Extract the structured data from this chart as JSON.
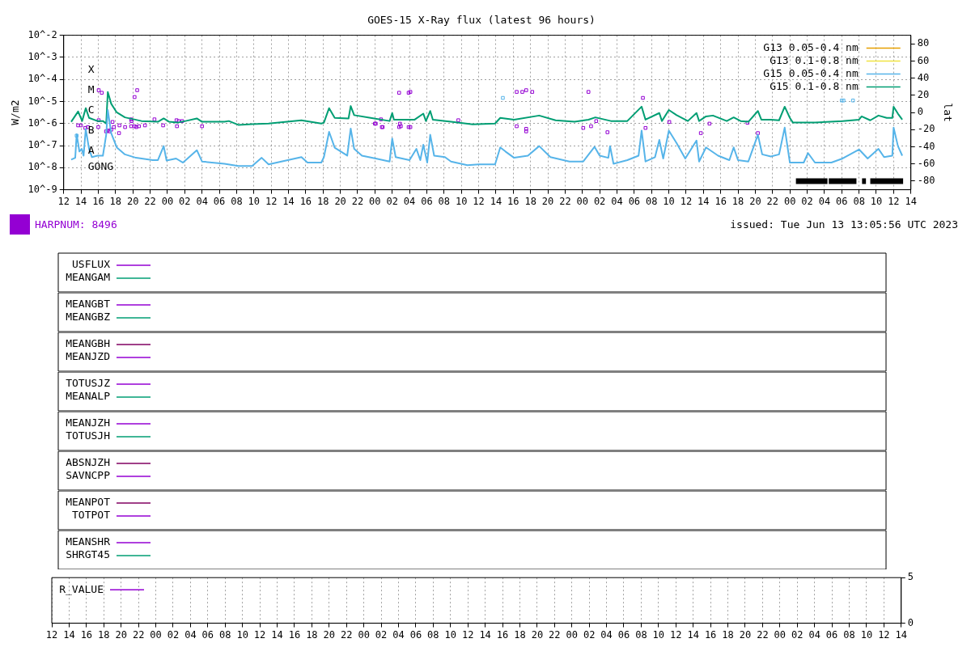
{
  "chart_data": [
    {
      "type": "line",
      "title": "GOES-15 X-Ray flux (latest 96 hours)",
      "ylabel": "W/m2",
      "y2label": "lat",
      "log": true,
      "grid": true,
      "legend": "top right",
      "xlim": [
        "2023-06-09T12:00",
        "2023-06-13T14:00"
      ],
      "xticks": [
        {
          "value": "2023-06-09T12:00",
          "label": "12"
        },
        {
          "value": "2023-06-09T14:00",
          "label": "14"
        },
        {
          "value": "2023-06-09T16:00",
          "label": "16"
        },
        {
          "value": "2023-06-09T18:00",
          "label": "18"
        },
        {
          "value": "2023-06-09T20:00",
          "label": "20"
        },
        {
          "value": "2023-06-09T22:00",
          "label": "22"
        },
        {
          "value": "2023-06-10T00:00",
          "label": "00"
        },
        {
          "value": "2023-06-10T02:00",
          "label": "02"
        },
        {
          "value": "2023-06-10T04:00",
          "label": "04"
        },
        {
          "value": "2023-06-10T06:00",
          "label": "06"
        },
        {
          "value": "2023-06-10T08:00",
          "label": "08"
        },
        {
          "value": "2023-06-10T10:00",
          "label": "10"
        },
        {
          "value": "2023-06-10T12:00",
          "label": "12"
        },
        {
          "value": "2023-06-10T14:00",
          "label": "14"
        },
        {
          "value": "2023-06-10T16:00",
          "label": "16"
        },
        {
          "value": "2023-06-10T18:00",
          "label": "18"
        },
        {
          "value": "2023-06-10T20:00",
          "label": "20"
        },
        {
          "value": "2023-06-10T22:00",
          "label": "22"
        },
        {
          "value": "2023-06-11T00:00",
          "label": "00"
        },
        {
          "value": "2023-06-11T02:00",
          "label": "02"
        },
        {
          "value": "2023-06-11T04:00",
          "label": "04"
        },
        {
          "value": "2023-06-11T06:00",
          "label": "06"
        },
        {
          "value": "2023-06-11T08:00",
          "label": "08"
        },
        {
          "value": "2023-06-11T10:00",
          "label": "10"
        },
        {
          "value": "2023-06-11T12:00",
          "label": "12"
        },
        {
          "value": "2023-06-11T14:00",
          "label": "14"
        },
        {
          "value": "2023-06-11T16:00",
          "label": "16"
        },
        {
          "value": "2023-06-11T18:00",
          "label": "18"
        },
        {
          "value": "2023-06-11T20:00",
          "label": "20"
        },
        {
          "value": "2023-06-11T22:00",
          "label": "22"
        },
        {
          "value": "2023-06-12T00:00",
          "label": "00"
        },
        {
          "value": "2023-06-12T02:00",
          "label": "02"
        },
        {
          "value": "2023-06-12T04:00",
          "label": "04"
        },
        {
          "value": "2023-06-12T06:00",
          "label": "06"
        },
        {
          "value": "2023-06-12T08:00",
          "label": "08"
        },
        {
          "value": "2023-06-12T10:00",
          "label": "10"
        },
        {
          "value": "2023-06-12T12:00",
          "label": "12"
        },
        {
          "value": "2023-06-12T14:00",
          "label": "14"
        },
        {
          "value": "2023-06-12T16:00",
          "label": "16"
        },
        {
          "value": "2023-06-12T18:00",
          "label": "18"
        },
        {
          "value": "2023-06-12T20:00",
          "label": "20"
        },
        {
          "value": "2023-06-12T22:00",
          "label": "22"
        },
        {
          "value": "2023-06-13T00:00",
          "label": "00"
        },
        {
          "value": "2023-06-13T02:00",
          "label": "02"
        },
        {
          "value": "2023-06-13T04:00",
          "label": "04"
        },
        {
          "value": "2023-06-13T06:00",
          "label": "06"
        },
        {
          "value": "2023-06-13T08:00",
          "label": "08"
        },
        {
          "value": "2023-06-13T10:00",
          "label": "10"
        },
        {
          "value": "2023-06-13T12:00",
          "label": "12"
        },
        {
          "value": "2023-06-13T14:00",
          "label": "14"
        }
      ],
      "ylim": [
        1e-09,
        0.01
      ],
      "yticks": [
        {
          "value": 1e-09,
          "label": "10^-9"
        },
        {
          "value": 1e-08,
          "label": "10^-8"
        },
        {
          "value": 1e-07,
          "label": "10^-7"
        },
        {
          "value": 1e-06,
          "label": "10^-6"
        },
        {
          "value": 1e-05,
          "label": "10^-5"
        },
        {
          "value": 0.0001,
          "label": "10^-4"
        },
        {
          "value": 0.001,
          "label": "10^-3"
        },
        {
          "value": 0.01,
          "label": "10^-2"
        }
      ],
      "y2lim": [
        -90,
        90
      ],
      "y2ticks": [
        -80,
        -60,
        -40,
        -20,
        0,
        20,
        40,
        60,
        80
      ],
      "series": [
        {
          "name": "G13 0.05-0.4 nm",
          "color": "#e69f00"
        },
        {
          "name": "G13 0.1-0.8 nm",
          "color": "#f0e442"
        },
        {
          "name": "G15 0.05-0.4 nm",
          "color": "#56b4e9",
          "x": [
            "2023-06-09T12:52",
            "2023-06-09T13:20",
            "2023-06-09T13:30",
            "2023-06-09T13:49",
            "2023-06-09T14:05",
            "2023-06-09T14:18",
            "2023-06-09T14:33",
            "2023-06-09T14:56",
            "2023-06-09T15:16",
            "2023-06-09T15:54",
            "2023-06-09T16:32",
            "2023-06-09T16:55",
            "2023-06-09T17:06",
            "2023-06-09T17:30",
            "2023-06-09T18:08",
            "2023-06-09T19:05",
            "2023-06-09T20:22",
            "2023-06-09T22:18",
            "2023-06-09T22:54",
            "2023-06-09T23:34",
            "2023-06-09T23:54",
            "2023-06-10T01:00",
            "2023-06-10T01:48",
            "2023-06-10T03:24",
            "2023-06-10T04:00",
            "2023-06-10T06:36",
            "2023-06-10T08:12",
            "2023-06-10T09:48",
            "2023-06-10T10:54",
            "2023-06-10T11:42",
            "2023-06-10T15:30",
            "2023-06-10T16:12",
            "2023-06-10T17:48",
            "2023-06-10T18:06",
            "2023-06-10T18:42",
            "2023-06-10T19:21",
            "2023-06-10T20:48",
            "2023-06-10T21:12",
            "2023-06-10T21:36",
            "2023-06-10T22:30",
            "2023-06-11T00:06",
            "2023-06-11T01:42",
            "2023-06-11T02:00",
            "2023-06-11T02:24",
            "2023-06-11T04:00",
            "2023-06-11T04:48",
            "2023-06-11T05:15",
            "2023-06-11T05:36",
            "2023-06-11T06:03",
            "2023-06-11T06:24",
            "2023-06-11T06:51",
            "2023-06-11T08:06",
            "2023-06-11T08:48",
            "2023-06-11T10:42",
            "2023-06-11T12:00",
            "2023-06-11T13:54",
            "2023-06-11T14:30",
            "2023-06-11T15:06",
            "2023-06-11T16:06",
            "2023-06-11T17:42",
            "2023-06-11T19:00",
            "2023-06-11T20:18",
            "2023-06-11T22:30",
            "2023-06-12T00:06",
            "2023-06-12T01:24",
            "2023-06-12T02:00",
            "2023-06-12T03:00",
            "2023-06-12T03:12",
            "2023-06-12T03:36",
            "2023-06-12T05:12",
            "2023-06-12T06:30",
            "2023-06-12T06:51",
            "2023-06-12T07:18",
            "2023-06-12T08:24",
            "2023-06-12T08:54",
            "2023-06-12T09:21",
            "2023-06-12T10:00",
            "2023-06-12T10:54",
            "2023-06-12T11:54",
            "2023-06-12T13:12",
            "2023-06-12T13:30",
            "2023-06-12T14:18",
            "2023-06-12T15:42",
            "2023-06-12T17:00",
            "2023-06-12T17:30",
            "2023-06-12T18:00",
            "2023-06-12T19:12",
            "2023-06-12T20:18",
            "2023-06-12T20:48",
            "2023-06-12T21:48",
            "2023-06-12T22:45",
            "2023-06-12T23:24",
            "2023-06-13T00:00",
            "2023-06-13T01:36",
            "2023-06-13T02:06",
            "2023-06-13T02:54",
            "2023-06-13T04:48",
            "2023-06-13T06:06",
            "2023-06-13T08:00",
            "2023-06-13T09:00",
            "2023-06-13T10:15",
            "2023-06-13T10:54",
            "2023-06-13T11:51",
            "2023-06-13T12:00",
            "2023-06-13T12:30",
            "2023-06-13T13:00"
          ],
          "values": [
            2.3e-08,
            2.8e-08,
            3.3e-07,
            5.4e-08,
            7.1e-08,
            3.5e-08,
            5.6e-07,
            7.1e-08,
            3e-08,
            3.5e-08,
            3.5e-08,
            3.1e-07,
            4.1e-06,
            3.6e-07,
            8.3e-08,
            4e-08,
            2.8e-08,
            2.2e-08,
            2.2e-08,
            9.5e-08,
            2.1e-08,
            2.6e-08,
            1.7e-08,
            6.2e-08,
            1.9e-08,
            1.5e-08,
            1.2e-08,
            1.2e-08,
            2.8e-08,
            1.4e-08,
            3e-08,
            1.7e-08,
            1.7e-08,
            3e-08,
            4.2e-07,
            8e-08,
            3.5e-08,
            5.9e-07,
            7.1e-08,
            3.5e-08,
            2.6e-08,
            1.9e-08,
            2.1e-07,
            3e-08,
            2.2e-08,
            7.1e-08,
            2.2e-08,
            1.1e-07,
            1.7e-08,
            3.1e-07,
            3.5e-08,
            3e-08,
            1.9e-08,
            1.3e-08,
            1.4e-08,
            1.4e-08,
            8.3e-08,
            5.4e-08,
            2.8e-08,
            3.5e-08,
            9.5e-08,
            3e-08,
            1.9e-08,
            1.9e-08,
            8.8e-08,
            3.5e-08,
            2.8e-08,
            9.5e-08,
            1.5e-08,
            2.2e-08,
            3.5e-08,
            4.8e-07,
            1.9e-08,
            3e-08,
            1.8e-07,
            2.6e-08,
            4.8e-07,
            1.3e-07,
            2.6e-08,
            1.7e-07,
            1.9e-08,
            8.3e-08,
            3.5e-08,
            2.2e-08,
            8.3e-08,
            2.2e-08,
            1.9e-08,
            3.1e-07,
            4e-08,
            3.2e-08,
            4e-08,
            6.5e-07,
            1.7e-08,
            1.7e-08,
            4.6e-08,
            1.7e-08,
            1.7e-08,
            2.6e-08,
            6.7e-08,
            2.6e-08,
            7.1e-08,
            3e-08,
            3.5e-08,
            6.5e-07,
            9.5e-08,
            3.5e-08
          ]
        },
        {
          "name": "G15 0.1-0.8 nm",
          "color": "#009e73",
          "x": [
            "2023-06-09T12:52",
            "2023-06-09T13:40",
            "2023-06-09T14:08",
            "2023-06-09T14:33",
            "2023-06-09T14:56",
            "2023-06-09T15:54",
            "2023-06-09T16:32",
            "2023-06-09T16:55",
            "2023-06-09T17:06",
            "2023-06-09T17:30",
            "2023-06-09T18:08",
            "2023-06-09T19:05",
            "2023-06-09T21:00",
            "2023-06-09T22:54",
            "2023-06-09T23:34",
            "2023-06-10T00:12",
            "2023-06-10T01:09",
            "2023-06-10T02:06",
            "2023-06-10T03:24",
            "2023-06-10T04:00",
            "2023-06-10T06:36",
            "2023-06-10T07:06",
            "2023-06-10T08:12",
            "2023-06-10T09:48",
            "2023-06-10T11:42",
            "2023-06-10T15:30",
            "2023-06-10T17:48",
            "2023-06-10T18:06",
            "2023-06-10T18:42",
            "2023-06-10T19:21",
            "2023-06-10T20:57",
            "2023-06-10T21:12",
            "2023-06-10T21:36",
            "2023-06-10T23:30",
            "2023-06-11T01:42",
            "2023-06-11T02:00",
            "2023-06-11T02:12",
            "2023-06-11T04:36",
            "2023-06-11T05:36",
            "2023-06-11T05:54",
            "2023-06-11T06:24",
            "2023-06-11T06:42",
            "2023-06-11T08:48",
            "2023-06-11T11:18",
            "2023-06-11T13:54",
            "2023-06-11T14:30",
            "2023-06-11T16:06",
            "2023-06-11T19:00",
            "2023-06-11T20:54",
            "2023-06-11T23:06",
            "2023-06-12T00:42",
            "2023-06-12T01:30",
            "2023-06-12T03:18",
            "2023-06-12T05:12",
            "2023-06-12T06:51",
            "2023-06-12T07:18",
            "2023-06-12T08:54",
            "2023-06-12T09:12",
            "2023-06-12T10:00",
            "2023-06-12T10:54",
            "2023-06-12T12:12",
            "2023-06-12T13:12",
            "2023-06-12T13:30",
            "2023-06-12T14:18",
            "2023-06-12T15:06",
            "2023-06-12T16:42",
            "2023-06-12T17:30",
            "2023-06-12T18:18",
            "2023-06-12T19:12",
            "2023-06-12T20:18",
            "2023-06-12T20:42",
            "2023-06-12T21:48",
            "2023-06-12T22:45",
            "2023-06-12T23:24",
            "2023-06-13T00:00",
            "2023-06-13T00:21",
            "2023-06-13T02:54",
            "2023-06-13T06:06",
            "2023-06-13T08:00",
            "2023-06-13T08:18",
            "2023-06-13T09:18",
            "2023-06-13T10:15",
            "2023-06-13T11:12",
            "2023-06-13T11:51",
            "2023-06-13T12:00",
            "2023-06-13T12:30",
            "2023-06-13T13:00"
          ],
          "values": [
            1.2e-06,
            3.5e-06,
            1.3e-06,
            5e-06,
            1.8e-06,
            1.3e-06,
            1.3e-06,
            1e-06,
            2.7e-05,
            7.8e-06,
            3.2e-06,
            1.9e-06,
            1.3e-06,
            1.2e-06,
            1.7e-06,
            1.2e-06,
            1.1e-06,
            1.3e-06,
            1.7e-06,
            1.2e-06,
            1.2e-06,
            1.3e-06,
            8.7e-07,
            9.4e-07,
            1e-06,
            1.4e-06,
            1e-06,
            1.1e-06,
            5e-06,
            1.8e-06,
            1.7e-06,
            6.2e-06,
            2.4e-06,
            1.8e-06,
            1.3e-06,
            3e-06,
            1.5e-06,
            1.5e-06,
            2.8e-06,
            1.3e-06,
            3.7e-06,
            1.5e-06,
            1.2e-06,
            9.2e-07,
            1e-06,
            1.8e-06,
            1.5e-06,
            2.3e-06,
            1.4e-06,
            1.2e-06,
            1.5e-06,
            1.9e-06,
            1.3e-06,
            1.3e-06,
            5.8e-06,
            1.5e-06,
            3e-06,
            1.3e-06,
            4.1e-06,
            2.4e-06,
            1.3e-06,
            3e-06,
            1.3e-06,
            2.1e-06,
            2.3e-06,
            1.3e-06,
            1.9e-06,
            1.3e-06,
            1.2e-06,
            3.7e-06,
            1.5e-06,
            1.5e-06,
            1.4e-06,
            5.8e-06,
            1.8e-06,
            1.1e-06,
            1.1e-06,
            1.3e-06,
            1.5e-06,
            2.1e-06,
            1.4e-06,
            2.3e-06,
            1.8e-06,
            1.8e-06,
            5.8e-06,
            2.8e-06,
            1.5e-06
          ]
        },
        {
          "name": "HARPNUM: 8496",
          "type": "scatter",
          "marker": "square",
          "axis": "y2",
          "color": "#9400d3",
          "x": [
            "2023-06-09T16:03",
            "2023-06-09T16:24",
            "2023-06-09T20:30",
            "2023-06-09T20:12",
            "2023-06-09T16:03",
            "2023-06-09T16:00",
            "2023-06-09T13:40",
            "2023-06-09T14:00",
            "2023-06-09T14:30",
            "2023-06-09T14:48",
            "2023-06-09T16:54",
            "2023-06-09T17:06",
            "2023-06-09T17:18",
            "2023-06-09T17:30",
            "2023-06-09T17:39",
            "2023-06-09T17:48",
            "2023-06-09T18:27",
            "2023-06-09T18:24",
            "2023-06-09T19:06",
            "2023-06-09T19:48",
            "2023-06-09T19:51",
            "2023-06-09T19:48",
            "2023-06-09T20:12",
            "2023-06-09T20:24",
            "2023-06-09T20:42",
            "2023-06-09T21:24",
            "2023-06-09T22:30",
            "2023-06-09T23:30",
            "2023-06-10T01:03",
            "2023-06-10T01:18",
            "2023-06-10T01:42",
            "2023-06-10T01:06",
            "2023-06-10T04:00",
            "2023-06-11T02:48",
            "2023-06-11T03:54",
            "2023-06-11T04:06",
            "2023-06-11T00:00",
            "2023-06-11T00:06",
            "2023-06-11T00:42",
            "2023-06-11T00:48",
            "2023-06-11T00:54",
            "2023-06-11T02:54",
            "2023-06-11T02:48",
            "2023-06-11T03:00",
            "2023-06-11T03:54",
            "2023-06-11T04:06",
            "2023-06-11T09:39",
            "2023-06-11T16:24",
            "2023-06-11T17:03",
            "2023-06-11T17:30",
            "2023-06-11T18:12",
            "2023-06-11T16:24",
            "2023-06-11T17:30",
            "2023-06-11T17:30",
            "2023-06-12T00:42",
            "2023-06-12T00:06",
            "2023-06-12T01:00",
            "2023-06-12T01:36",
            "2023-06-12T02:54",
            "2023-06-12T07:00",
            "2023-06-12T07:18",
            "2023-06-12T10:03",
            "2023-06-12T14:42",
            "2023-06-12T13:42",
            "2023-06-12T19:06",
            "2023-06-12T20:18"
          ],
          "values": [
            26,
            23,
            26,
            18,
            -9,
            -17,
            -15,
            -15,
            -18,
            -17,
            -22,
            -21,
            -22,
            -20,
            -11,
            -17,
            -15,
            -24,
            -17,
            -8,
            -10,
            -16,
            -16,
            -17,
            -16,
            -15,
            -8,
            -15,
            -9,
            -10,
            -10,
            -16,
            -16,
            23,
            23,
            24,
            -13,
            -13,
            -8,
            -17,
            -17,
            -13,
            -17,
            -16,
            -17,
            -17,
            -9,
            24,
            24,
            26,
            24,
            -16,
            -19,
            -22,
            24,
            -18,
            -16,
            -10,
            -23,
            17,
            -18,
            -11,
            -13,
            -24,
            -12,
            -24
          ]
        },
        {
          "type": "scatter",
          "marker": "square",
          "axis": "y2",
          "color": "#56b4e9",
          "x": [
            "2023-06-09T13:30",
            "2023-06-11T14:48",
            "2023-06-13T06:00",
            "2023-06-13T06:12",
            "2023-06-13T07:18"
          ],
          "values": [
            -27,
            17,
            14,
            14,
            14
          ]
        },
        {
          "type": "line",
          "axis": "y2",
          "color": "#000000",
          "x": [
            "2023-06-13T00:42",
            "2023-06-13T04:21",
            "2023-06-13T04:24",
            "2023-06-13T04:30",
            "2023-06-13T07:42",
            "2023-06-13T07:48",
            "2023-06-13T08:21",
            "2023-06-13T08:48",
            "2023-06-13T08:54",
            "2023-06-13T09:18",
            "2023-06-13T13:06"
          ],
          "values": [
            -80,
            -80,
            null,
            -80,
            -80,
            null,
            -80,
            -80,
            null,
            -80,
            -80
          ]
        }
      ],
      "annotations": [
        "X",
        "M",
        "C",
        "B",
        "A",
        "GONG",
        "issued: Tue Jun 13 13:05:56 UTC 2023"
      ]
    },
    {
      "type": "other",
      "legend": "top left",
      "series": [
        {
          "name": "USFLUX",
          "color": "#9400d3"
        },
        {
          "name": "MEANGAM",
          "color": "#009e73"
        }
      ]
    },
    {
      "type": "other",
      "legend": "top left",
      "series": [
        {
          "name": "MEANGBT",
          "color": "#9400d3"
        },
        {
          "name": "MEANGBZ",
          "color": "#009e73"
        }
      ]
    },
    {
      "type": "other",
      "legend": "top left",
      "series": [
        {
          "name": "MEANGBH",
          "color": "#800060"
        },
        {
          "name": "MEANJZD",
          "color": "#9400d3"
        }
      ]
    },
    {
      "type": "other",
      "legend": "top left",
      "series": [
        {
          "name": "TOTUSJZ",
          "color": "#9400d3"
        },
        {
          "name": "MEANALP",
          "color": "#009e73"
        }
      ]
    },
    {
      "type": "other",
      "legend": "top left",
      "series": [
        {
          "name": "MEANJZH",
          "color": "#9400d3"
        },
        {
          "name": "TOTUSJH",
          "color": "#009e73"
        }
      ]
    },
    {
      "type": "other",
      "legend": "top left",
      "series": [
        {
          "name": "ABSNJZH",
          "color": "#800060"
        },
        {
          "name": "SAVNCPP",
          "color": "#9400d3"
        }
      ]
    },
    {
      "type": "other",
      "legend": "top left",
      "series": [
        {
          "name": "MEANPOT",
          "color": "#800060"
        },
        {
          "name": "TOTPOT",
          "color": "#9400d3"
        }
      ]
    },
    {
      "type": "other",
      "legend": "top left",
      "series": [
        {
          "name": "MEANSHR",
          "color": "#9400d3"
        },
        {
          "name": "SHRGT45",
          "color": "#009e73"
        }
      ]
    },
    {
      "type": "line",
      "legend": "top left",
      "grid": "x",
      "categories": [
        "12",
        "14",
        "16",
        "18",
        "20",
        "22",
        "00",
        "02",
        "04",
        "06",
        "08",
        "10",
        "12",
        "14",
        "16",
        "18",
        "20",
        "22",
        "00",
        "02",
        "04",
        "06",
        "08",
        "10",
        "12",
        "14",
        "16",
        "18",
        "20",
        "22",
        "00",
        "02",
        "04",
        "06",
        "08",
        "10",
        "12",
        "14",
        "16",
        "18",
        "20",
        "22",
        "00",
        "02",
        "04",
        "06",
        "08",
        "10",
        "12",
        "14"
      ],
      "y2lim": [
        0,
        5
      ],
      "y2ticks": [
        0,
        5
      ],
      "series": [
        {
          "name": "R_VALUE",
          "color": "#9400d3",
          "axis": "y2",
          "values": [
            null,
            null,
            null,
            null,
            null,
            null,
            null,
            null,
            null,
            null,
            null,
            null,
            null,
            null,
            null,
            null,
            null,
            null,
            null,
            null,
            null,
            null,
            null,
            null,
            null,
            null,
            null,
            null,
            null,
            null,
            null,
            null,
            null,
            null,
            null,
            null,
            null,
            null,
            null,
            null,
            null,
            null,
            null,
            null,
            null,
            null,
            null,
            null,
            null,
            null
          ]
        }
      ]
    }
  ]
}
